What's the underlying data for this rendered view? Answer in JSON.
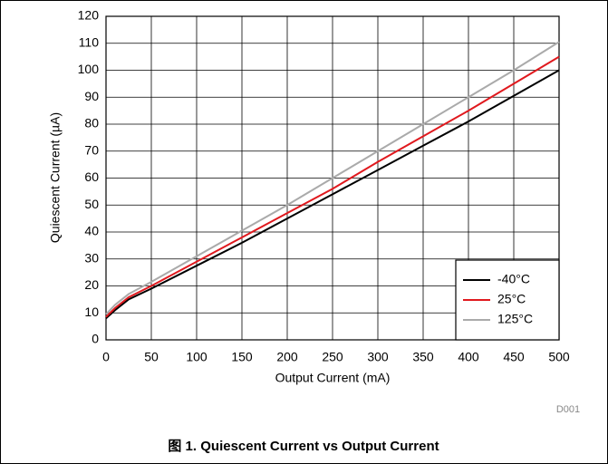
{
  "chart_data": {
    "type": "line",
    "title": "图 1. Quiescent Current vs Output Current",
    "xlabel": "Output Current (mA)",
    "ylabel": "Quiescent Current (µA)",
    "annotation": "D001",
    "x": [
      0,
      10,
      25,
      50,
      100,
      150,
      200,
      250,
      300,
      350,
      400,
      450,
      500
    ],
    "series": [
      {
        "name": "-40°C",
        "color": "#000000",
        "values": [
          8,
          11,
          15,
          19,
          27.5,
          36,
          45,
          54,
          63,
          72,
          81,
          90.5,
          100
        ]
      },
      {
        "name": "25°C",
        "color": "#e0191e",
        "values": [
          8.5,
          11.8,
          15.8,
          20,
          29,
          38,
          47,
          56,
          66,
          75.5,
          85,
          95,
          105
        ]
      },
      {
        "name": "125°C",
        "color": "#aaaaaa",
        "values": [
          9.5,
          13,
          17,
          21.5,
          31,
          40.5,
          50,
          60,
          70,
          80,
          90,
          100,
          110.5
        ]
      }
    ],
    "xlim": [
      0,
      500
    ],
    "xticks": [
      0,
      50,
      100,
      150,
      200,
      250,
      300,
      350,
      400,
      450,
      500
    ],
    "ylim": [
      0,
      120
    ],
    "yticks": [
      0,
      10,
      20,
      30,
      40,
      50,
      60,
      70,
      80,
      90,
      100,
      110,
      120
    ],
    "grid": true,
    "legend": "lower right"
  }
}
